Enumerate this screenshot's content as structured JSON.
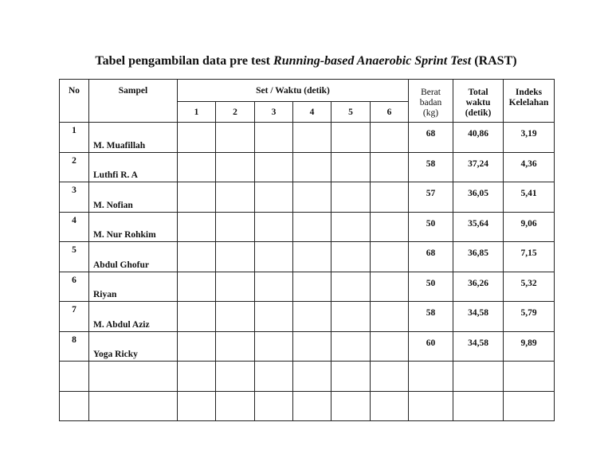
{
  "title": {
    "prefix": "Tabel pengambilan data pre test ",
    "italic": "Running-based Anaerobic Sprint Test",
    "suffix": " (RAST)"
  },
  "headers": {
    "no": "No",
    "sampel": "Sampel",
    "set_waktu": "Set / Waktu (detik)",
    "sets": [
      "1",
      "2",
      "3",
      "4",
      "5",
      "6"
    ],
    "berat": [
      "Berat",
      "badan",
      "(kg)"
    ],
    "total": [
      "Total",
      "waktu",
      "(detik)"
    ],
    "indeks": [
      "Indeks",
      "Kelelahan"
    ]
  },
  "rows": [
    {
      "no": "1",
      "name": "M. Muafillah",
      "berat": "68",
      "total": "40,86",
      "indeks": "3,19"
    },
    {
      "no": "2",
      "name": " Luthfi R. A",
      "berat": "58",
      "total": "37,24",
      "indeks": "4,36"
    },
    {
      "no": "3",
      "name": "M. Nofian",
      "berat": "57",
      "total": "36,05",
      "indeks": "5,41"
    },
    {
      "no": "4",
      "name": "M. Nur Rohkim",
      "berat": "50",
      "total": "35,64",
      "indeks": "9,06"
    },
    {
      "no": "5",
      "name": "Abdul Ghofur",
      "berat": "68",
      "total": "36,85",
      "indeks": "7,15"
    },
    {
      "no": "6",
      "name": "Riyan",
      "berat": "50",
      "total": "36,26",
      "indeks": "5,32"
    },
    {
      "no": "7",
      "name": "M. Abdul Aziz",
      "berat": "58",
      "total": "34,58",
      "indeks": "5,79"
    },
    {
      "no": "8",
      "name": "Yoga Ricky",
      "berat": "60",
      "total": "34,58",
      "indeks": "9,89"
    },
    {
      "no": "",
      "name": "",
      "berat": "",
      "total": "",
      "indeks": ""
    },
    {
      "no": "",
      "name": "",
      "berat": "",
      "total": "",
      "indeks": ""
    }
  ]
}
